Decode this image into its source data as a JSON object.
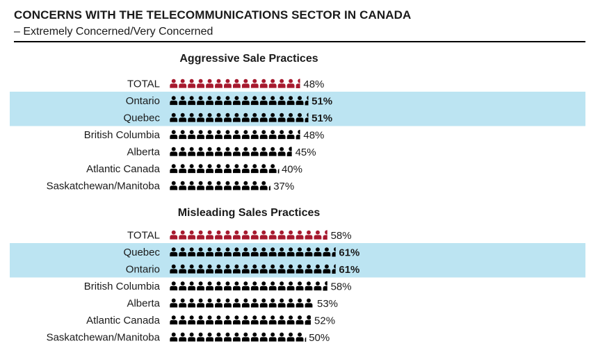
{
  "header": {
    "title": "CONCERNS WITH THE TELECOMMUNICATIONS SECTOR IN CANADA",
    "subtitle": "– Extremely Concerned/Very Concerned"
  },
  "colors": {
    "total_icon": "#a6192e",
    "region_icon": "#000000",
    "highlight": "#bce4f2",
    "text": "#1a1a1a"
  },
  "chart_data": [
    {
      "type": "bar",
      "title": "Aggressive Sale Practices",
      "categories": [
        "TOTAL",
        "Ontario",
        "Quebec",
        "British Columbia",
        "Alberta",
        "Atlantic Canada",
        "Saskatchewan/Manitoba"
      ],
      "values": [
        48,
        51,
        51,
        48,
        45,
        40,
        37
      ],
      "labels": [
        "48%",
        "51%",
        "51%",
        "48%",
        "45%",
        "40%",
        "37%"
      ],
      "highlighted": [
        false,
        true,
        true,
        false,
        false,
        false,
        false
      ],
      "icon": "person-icon"
    },
    {
      "type": "bar",
      "title": "Misleading Sales Practices",
      "categories": [
        "TOTAL",
        "Quebec",
        "Ontario",
        "British Columbia",
        "Alberta",
        "Atlantic Canada",
        "Saskatchewan/Manitoba"
      ],
      "values": [
        58,
        61,
        61,
        58,
        53,
        52,
        50
      ],
      "labels": [
        "58%",
        "61%",
        "61%",
        "58%",
        "53%",
        "52%",
        "50%"
      ],
      "highlighted": [
        false,
        true,
        true,
        false,
        false,
        false,
        false
      ],
      "icon": "person-icon"
    }
  ]
}
